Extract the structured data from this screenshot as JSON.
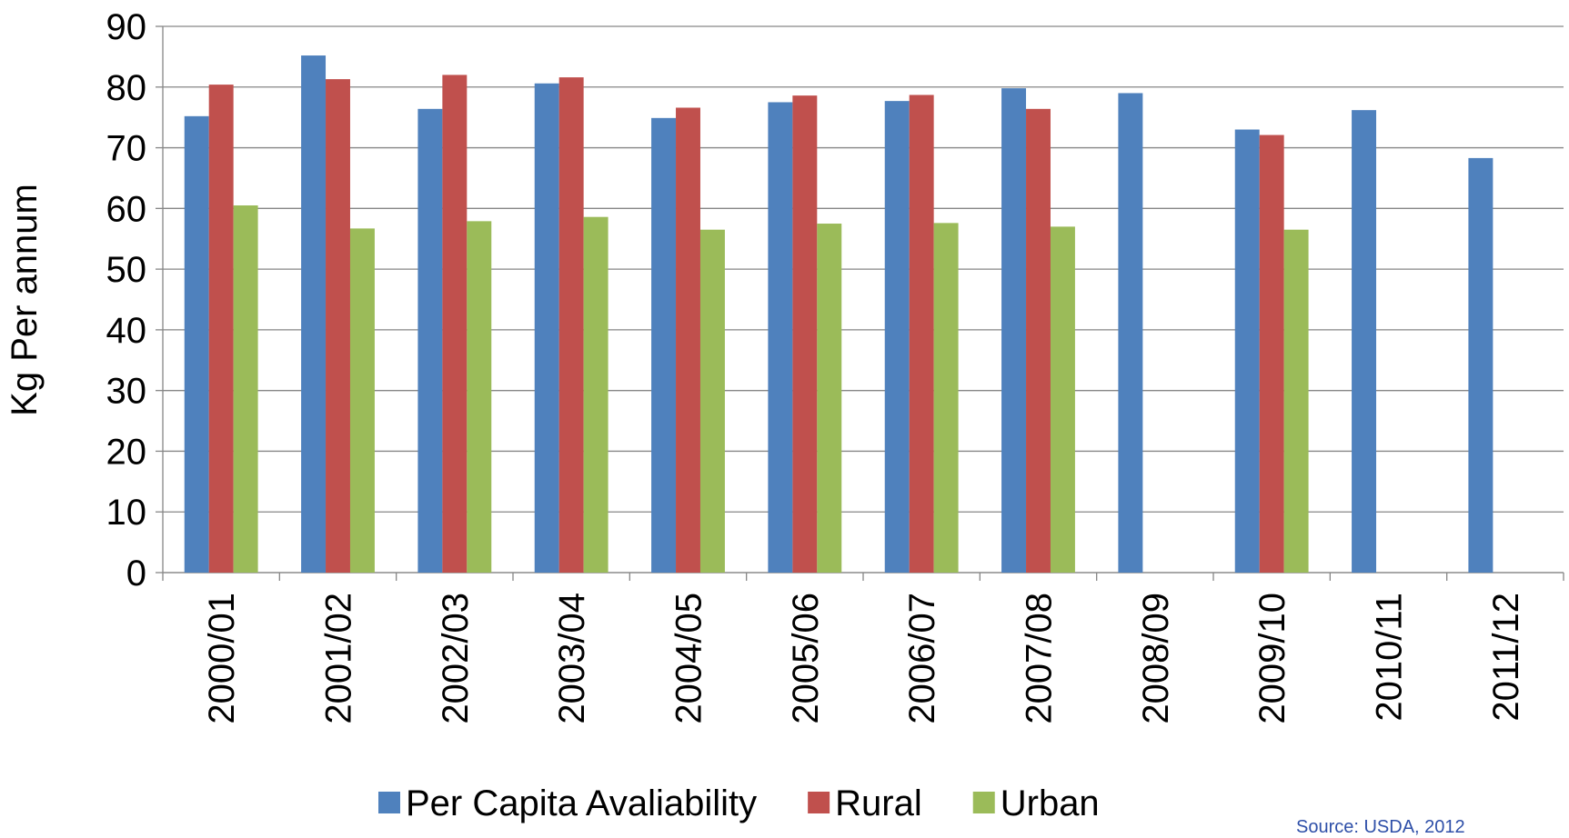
{
  "chart_data": {
    "type": "bar",
    "y_label": "Kg Per  annum",
    "source": "Source: USDA, 2012",
    "categories": [
      "2000/01",
      "2001/02",
      "2002/03",
      "2003/04",
      "2004/05",
      "2005/06",
      "2006/07",
      "2007/08",
      "2008/09",
      "2009/10",
      "2010/11",
      "2011/12"
    ],
    "series": [
      {
        "name": "Per Capita Avaliability",
        "color": "#4f81bd",
        "values": [
          75.2,
          85.2,
          76.4,
          80.6,
          74.9,
          77.5,
          77.7,
          79.8,
          79.0,
          73.0,
          76.2,
          68.3
        ]
      },
      {
        "name": "Rural",
        "color": "#c0504d",
        "values": [
          80.4,
          81.3,
          82.0,
          81.6,
          76.6,
          78.6,
          78.7,
          76.4,
          null,
          72.1,
          null,
          null
        ]
      },
      {
        "name": "Urban",
        "color": "#9bbb59",
        "values": [
          60.5,
          56.7,
          57.9,
          58.6,
          56.5,
          57.5,
          57.6,
          57.0,
          null,
          56.5,
          null,
          null
        ]
      }
    ],
    "ylim": [
      0,
      90
    ],
    "yticks": [
      0,
      10,
      20,
      30,
      40,
      50,
      60,
      70,
      80,
      90
    ],
    "grid": true,
    "legend": "bottom"
  }
}
